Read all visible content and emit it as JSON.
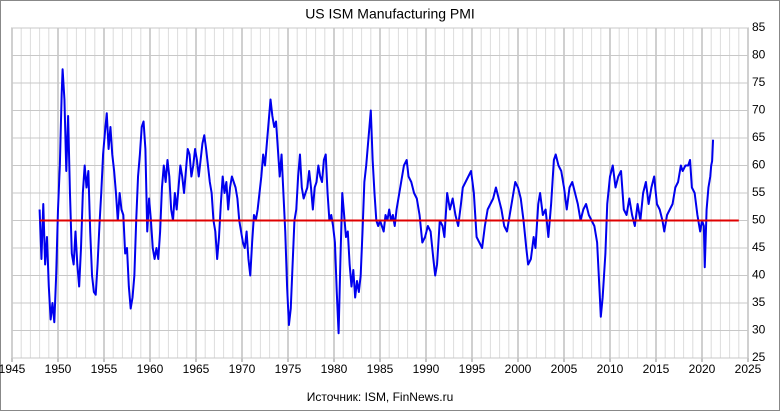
{
  "chart_data": {
    "type": "line",
    "title": "US ISM Manufacturing  PMI",
    "source": "Источник: ISM, FinNews.ru",
    "xlim": [
      1945,
      2025
    ],
    "xticks": [
      1945,
      1950,
      1955,
      1960,
      1965,
      1970,
      1975,
      1980,
      1985,
      1990,
      1995,
      2000,
      2005,
      2010,
      2015,
      2020,
      2025
    ],
    "ylim": [
      25,
      85
    ],
    "yticks": [
      25,
      30,
      35,
      40,
      45,
      50,
      55,
      60,
      65,
      70,
      75,
      80,
      85
    ],
    "grid": true,
    "x_minor_step": 1,
    "y_axis_side": "right",
    "reference_line": {
      "y": 50,
      "x": [
        1948,
        2024
      ],
      "color": "#e00000"
    },
    "series": [
      {
        "color": "#0000ee",
        "x": [
          1948.0,
          1948.2,
          1948.4,
          1948.6,
          1948.8,
          1949.0,
          1949.2,
          1949.4,
          1949.6,
          1949.8,
          1950.0,
          1950.2,
          1950.4,
          1950.5,
          1950.7,
          1950.9,
          1951.1,
          1951.3,
          1951.5,
          1951.7,
          1951.9,
          1952.1,
          1952.3,
          1952.5,
          1952.7,
          1952.9,
          1953.1,
          1953.3,
          1953.5,
          1953.7,
          1953.9,
          1954.1,
          1954.3,
          1954.5,
          1954.7,
          1954.9,
          1955.1,
          1955.3,
          1955.5,
          1955.7,
          1955.9,
          1956.1,
          1956.3,
          1956.5,
          1956.7,
          1956.9,
          1957.1,
          1957.3,
          1957.5,
          1957.7,
          1957.9,
          1958.1,
          1958.3,
          1958.5,
          1958.7,
          1958.9,
          1959.1,
          1959.3,
          1959.5,
          1959.7,
          1959.9,
          1960.1,
          1960.3,
          1960.5,
          1960.7,
          1960.9,
          1961.1,
          1961.3,
          1961.5,
          1961.7,
          1961.9,
          1962.1,
          1962.3,
          1962.5,
          1962.7,
          1962.9,
          1963.1,
          1963.3,
          1963.5,
          1963.7,
          1963.9,
          1964.1,
          1964.3,
          1964.5,
          1964.7,
          1964.9,
          1965.1,
          1965.3,
          1965.5,
          1965.7,
          1965.9,
          1966.1,
          1966.3,
          1966.5,
          1966.7,
          1966.9,
          1967.1,
          1967.3,
          1967.5,
          1967.7,
          1967.9,
          1968.1,
          1968.3,
          1968.5,
          1968.7,
          1968.9,
          1969.1,
          1969.3,
          1969.5,
          1969.7,
          1969.9,
          1970.1,
          1970.3,
          1970.5,
          1970.7,
          1970.9,
          1971.1,
          1971.3,
          1971.5,
          1971.7,
          1971.9,
          1972.1,
          1972.3,
          1972.5,
          1972.7,
          1972.9,
          1973.1,
          1973.3,
          1973.5,
          1973.7,
          1973.9,
          1974.1,
          1974.3,
          1974.5,
          1974.7,
          1974.9,
          1975.1,
          1975.3,
          1975.5,
          1975.7,
          1975.9,
          1976.1,
          1976.3,
          1976.5,
          1976.7,
          1976.9,
          1977.1,
          1977.3,
          1977.5,
          1977.7,
          1977.9,
          1978.1,
          1978.3,
          1978.5,
          1978.7,
          1978.9,
          1979.1,
          1979.3,
          1979.5,
          1979.7,
          1979.9,
          1980.1,
          1980.3,
          1980.5,
          1980.7,
          1980.9,
          1981.1,
          1981.3,
          1981.5,
          1981.7,
          1981.9,
          1982.1,
          1982.3,
          1982.5,
          1982.7,
          1982.9,
          1983.1,
          1983.3,
          1983.5,
          1983.7,
          1983.9,
          1984.0,
          1984.2,
          1984.4,
          1984.6,
          1984.8,
          1985.0,
          1985.2,
          1985.4,
          1985.6,
          1985.8,
          1986.0,
          1986.2,
          1986.4,
          1986.6,
          1986.8,
          1987.0,
          1987.3,
          1987.6,
          1987.9,
          1988.1,
          1988.4,
          1988.7,
          1989.0,
          1989.3,
          1989.6,
          1989.9,
          1990.2,
          1990.5,
          1990.8,
          1991.0,
          1991.2,
          1991.5,
          1991.8,
          1992.0,
          1992.3,
          1992.6,
          1992.9,
          1993.2,
          1993.5,
          1993.8,
          1994.0,
          1994.3,
          1994.6,
          1994.9,
          1995.2,
          1995.5,
          1995.8,
          1996.1,
          1996.4,
          1996.7,
          1997.0,
          1997.3,
          1997.6,
          1997.9,
          1998.2,
          1998.5,
          1998.8,
          1999.1,
          1999.4,
          1999.7,
          2000.0,
          2000.3,
          2000.6,
          2000.9,
          2001.1,
          2001.4,
          2001.7,
          2001.9,
          2002.2,
          2002.4,
          2002.7,
          2003.0,
          2003.3,
          2003.6,
          2003.9,
          2004.1,
          2004.4,
          2004.7,
          2005.0,
          2005.3,
          2005.6,
          2005.9,
          2006.2,
          2006.5,
          2006.8,
          2007.1,
          2007.4,
          2007.7,
          2008.0,
          2008.3,
          2008.6,
          2008.9,
          2009.0,
          2009.2,
          2009.5,
          2009.7,
          2010.0,
          2010.3,
          2010.6,
          2010.9,
          2011.2,
          2011.5,
          2011.8,
          2012.1,
          2012.4,
          2012.7,
          2013.0,
          2013.3,
          2013.6,
          2013.9,
          2014.2,
          2014.5,
          2014.8,
          2015.1,
          2015.4,
          2015.7,
          2015.9,
          2016.2,
          2016.5,
          2016.8,
          2017.1,
          2017.4,
          2017.7,
          2017.9,
          2018.2,
          2018.5,
          2018.7,
          2018.9,
          2019.2,
          2019.5,
          2019.8,
          2020.0,
          2020.2,
          2020.3,
          2020.5,
          2020.7,
          2020.9,
          2021.0,
          2021.1,
          2021.2
        ],
        "values": [
          52,
          43,
          53,
          42,
          47,
          38,
          32,
          35,
          31.5,
          40,
          52,
          60,
          73,
          77.5,
          72,
          59,
          69,
          55,
          44,
          42,
          48,
          42,
          38,
          45,
          55,
          60,
          56,
          59,
          48,
          40,
          37,
          36.5,
          42,
          49,
          55,
          62,
          66,
          69.5,
          63,
          67,
          62,
          59,
          55,
          50,
          55,
          52,
          51,
          44,
          45,
          38,
          34,
          36,
          40,
          50,
          58,
          62,
          67,
          68,
          63,
          48,
          54,
          50,
          45,
          43,
          45,
          43,
          48,
          56,
          60,
          57,
          61,
          58,
          52,
          50,
          55,
          52,
          56,
          60,
          58,
          55,
          59,
          63,
          62,
          58,
          60,
          63,
          61,
          58,
          61,
          64,
          65.5,
          63,
          60,
          57,
          55,
          50,
          48,
          43,
          47,
          53,
          58,
          55,
          57,
          52,
          56,
          58,
          57,
          56,
          54,
          50,
          48,
          46,
          45,
          48,
          43,
          40,
          46,
          51,
          50,
          52,
          55,
          58,
          62,
          60,
          64,
          68,
          72,
          69,
          67,
          68,
          63,
          58,
          62,
          55,
          48,
          38,
          31,
          34,
          42,
          50,
          52,
          58,
          62,
          56,
          54,
          55,
          56,
          59,
          56,
          52,
          56,
          57,
          60,
          58,
          57,
          61,
          62,
          55,
          50,
          51,
          49,
          46,
          37,
          29.5,
          43,
          55,
          51,
          47,
          48,
          42,
          38,
          41,
          36,
          39,
          37,
          40,
          48,
          57,
          60,
          64,
          68,
          70,
          61,
          55,
          50,
          49,
          50,
          49,
          48,
          51,
          50,
          52,
          50,
          51,
          49,
          52,
          54,
          57,
          60,
          61,
          58,
          57,
          55,
          54,
          51,
          46,
          47,
          49,
          48,
          43,
          40,
          42,
          50,
          49,
          47,
          55,
          52,
          54,
          51,
          49,
          53,
          56,
          57,
          58,
          59,
          55,
          47,
          46,
          45,
          49,
          52,
          53,
          54,
          56,
          54,
          52,
          49,
          48,
          51,
          54,
          57,
          56,
          54,
          50,
          45,
          42,
          43,
          47,
          45,
          53,
          55,
          51,
          52,
          47,
          53,
          61,
          62,
          60,
          59,
          56,
          52,
          56,
          57,
          55,
          53,
          50,
          52,
          53,
          51,
          50,
          49,
          46,
          36,
          32.5,
          36,
          44,
          53,
          58,
          60,
          56,
          58,
          59,
          52,
          51,
          54,
          51,
          49,
          53,
          50,
          55,
          57,
          53,
          56,
          58,
          53,
          52,
          50,
          48,
          51,
          52,
          53,
          56,
          57,
          60,
          59,
          60,
          60,
          61,
          56,
          55,
          51,
          48,
          50,
          49,
          41.5,
          52,
          56,
          58,
          60,
          60.8,
          64.7
        ]
      }
    ]
  }
}
